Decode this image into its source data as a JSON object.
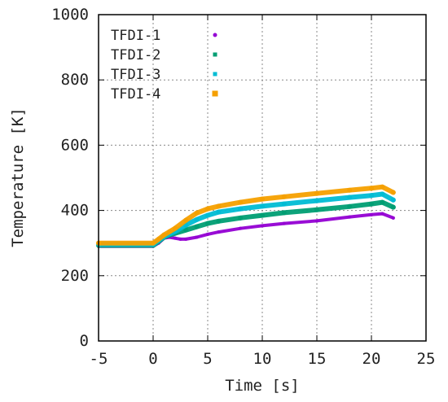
{
  "chart_data": {
    "type": "scatter",
    "title": "",
    "xlabel": "Time [s]",
    "ylabel": "Temperature [K]",
    "xlim": [
      -5,
      25
    ],
    "ylim": [
      0,
      1000
    ],
    "xticks": [
      -5,
      0,
      5,
      10,
      15,
      20,
      25
    ],
    "yticks": [
      0,
      200,
      400,
      600,
      800,
      1000
    ],
    "xtick_labels": [
      "-5",
      "0",
      "5",
      "10",
      "15",
      "20",
      "25"
    ],
    "ytick_labels": [
      "0",
      "200",
      "400",
      "600",
      "800",
      "1000"
    ],
    "grid": true,
    "legend_position": "top-left",
    "series": [
      {
        "name": "TFDI-1",
        "color": "#9400d3",
        "marker": "dot",
        "x": [
          -5,
          0,
          0.5,
          1,
          1.5,
          2,
          2.5,
          3,
          4,
          5,
          6,
          8,
          10,
          12,
          15,
          18,
          20,
          21,
          22
        ],
        "y": [
          290,
          290,
          300,
          315,
          318,
          315,
          312,
          312,
          318,
          327,
          334,
          345,
          353,
          360,
          368,
          380,
          387,
          390,
          377
        ]
      },
      {
        "name": "TFDI-2",
        "color": "#009e73",
        "marker": "square",
        "x": [
          -5,
          0,
          0.5,
          1,
          1.5,
          2,
          3,
          4,
          5,
          6,
          8,
          10,
          12,
          15,
          18,
          20,
          21,
          22
        ],
        "y": [
          293,
          293,
          305,
          318,
          325,
          330,
          340,
          350,
          360,
          367,
          377,
          385,
          393,
          402,
          412,
          420,
          425,
          410
        ]
      },
      {
        "name": "TFDI-3",
        "color": "#00bcd4",
        "marker": "square",
        "x": [
          -5,
          0,
          0.5,
          1,
          1.5,
          2,
          3,
          4,
          5,
          6,
          8,
          10,
          12,
          15,
          18,
          20,
          21,
          22
        ],
        "y": [
          296,
          296,
          308,
          320,
          328,
          335,
          355,
          372,
          385,
          395,
          405,
          413,
          420,
          430,
          440,
          446,
          450,
          432
        ]
      },
      {
        "name": "TFDI-4",
        "color": "#f5a000",
        "marker": "square",
        "x": [
          -5,
          0,
          0.5,
          1,
          1.5,
          2,
          3,
          4,
          5,
          6,
          8,
          10,
          12,
          15,
          18,
          20,
          21,
          22
        ],
        "y": [
          300,
          300,
          312,
          325,
          335,
          345,
          370,
          392,
          405,
          413,
          425,
          435,
          442,
          452,
          462,
          468,
          472,
          455
        ]
      }
    ]
  }
}
